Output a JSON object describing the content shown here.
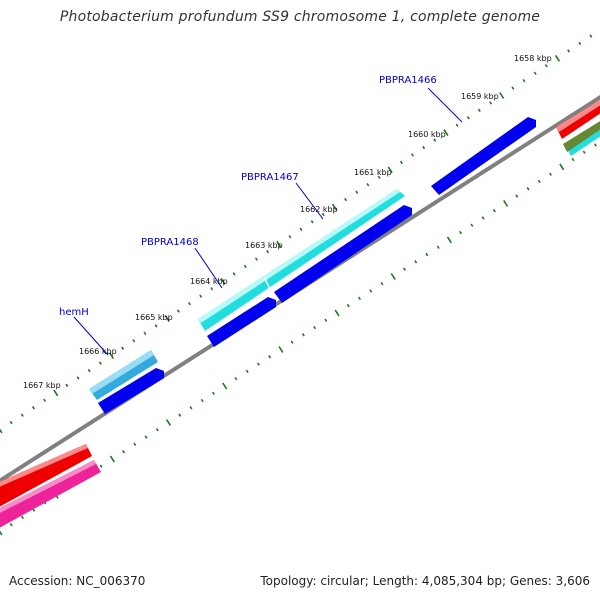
{
  "title": "Photobacterium profundum SS9 chromosome 1, complete genome",
  "footer": {
    "accession": "Accession: NC_006370",
    "summary": "Topology: circular; Length: 4,085,304 bp; Genes: 3,606"
  },
  "colors": {
    "backbone": "#808080",
    "tick": "#1a7a1a",
    "gene_label": "#0000cc",
    "forward_cds": "#22dddd",
    "reverse_cds": "#0000ee",
    "hemH": "#33aadd",
    "rna_red": "#ee0000",
    "rna_pink": "#ee2299",
    "olive": "#668833"
  },
  "scale_labels": [
    "1658 kbp",
    "1659 kbp",
    "1660 kbp",
    "1661 kbp",
    "1662 kbp",
    "1663 kbp",
    "1664 kbp",
    "1665 kbp",
    "1666 kbp",
    "1667 kbp"
  ],
  "gene_labels": [
    "PBPRA1466",
    "PBPRA1467",
    "PBPRA1468",
    "hemH"
  ]
}
